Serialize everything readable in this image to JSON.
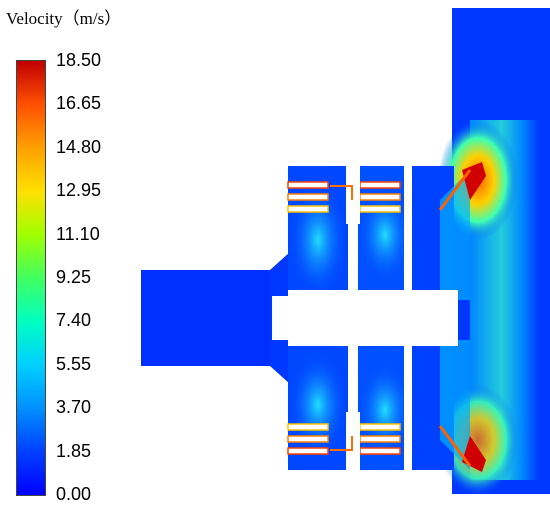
{
  "legend": {
    "title": "Velocity（m/s）",
    "ticks": [
      "18.50",
      "16.65",
      "14.80",
      "12.95",
      "11.10",
      "9.25",
      "7.40",
      "5.55",
      "3.70",
      "1.85",
      "0.00"
    ]
  },
  "colors": {
    "low": "#0000ff",
    "mid": "#40ff60",
    "high": "#c00000",
    "background": "#ffffff"
  }
}
